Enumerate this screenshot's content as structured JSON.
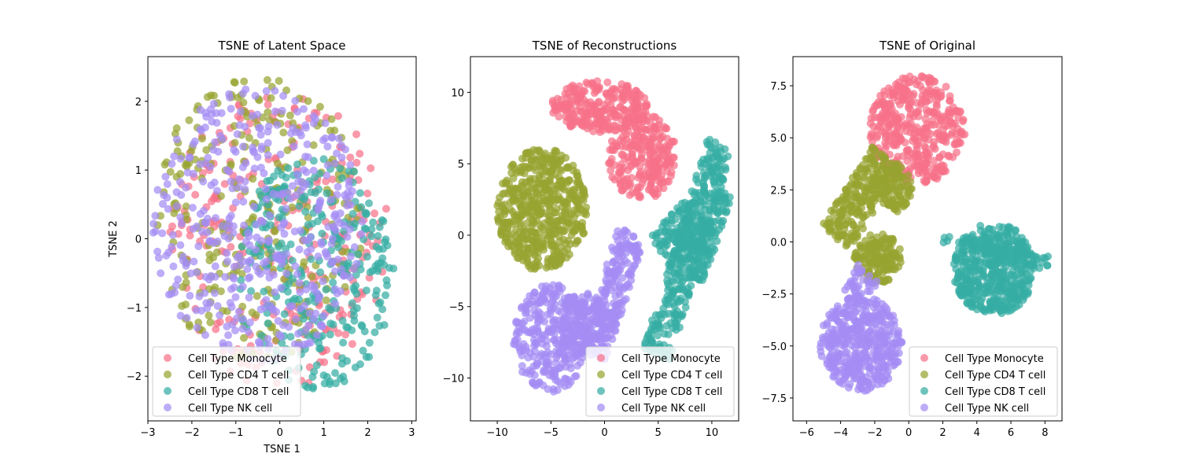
{
  "chart_data": [
    {
      "type": "scatter",
      "title": "TSNE of Latent Space",
      "xlabel": "TSNE 1",
      "ylabel": "TSNE 2",
      "xlim": [
        -3.0,
        3.1
      ],
      "ylim": [
        -2.65,
        2.65
      ],
      "xticks": [
        -3,
        -2,
        -1,
        0,
        1,
        2,
        3
      ],
      "yticks": [
        -2,
        -1,
        0,
        1,
        2
      ],
      "legend": "lower-left",
      "series": [
        {
          "name": "Cell Type Monocyte",
          "color": "#f77189",
          "clusters": [
            {
              "cx": 0.0,
              "cy": 0.0,
              "rx": 2.5,
              "ry": 2.2,
              "shape": "disk",
              "n": 260
            }
          ]
        },
        {
          "name": "Cell Type CD4 T cell",
          "color": "#97a431",
          "clusters": [
            {
              "cx": -0.5,
              "cy": 0.3,
              "rx": 2.4,
              "ry": 2.1,
              "shape": "disk",
              "n": 280
            }
          ]
        },
        {
          "name": "Cell Type CD8 T cell",
          "color": "#36ada4",
          "clusters": [
            {
              "cx": 0.8,
              "cy": -0.5,
              "rx": 1.8,
              "ry": 1.7,
              "shape": "disk",
              "n": 300
            }
          ]
        },
        {
          "name": "Cell Type NK cell",
          "color": "#a48cf4",
          "clusters": [
            {
              "cx": -0.5,
              "cy": 0.2,
              "rx": 2.4,
              "ry": 2.0,
              "shape": "disk",
              "n": 420
            }
          ]
        }
      ]
    },
    {
      "type": "scatter",
      "title": "TSNE of Reconstructions",
      "xlabel": "",
      "ylabel": "",
      "xlim": [
        -12.5,
        12.5
      ],
      "ylim": [
        -13.0,
        12.5
      ],
      "xticks": [
        -10,
        -5,
        0,
        5,
        10
      ],
      "yticks": [
        -10,
        -5,
        0,
        5,
        10
      ],
      "legend": "lower-right",
      "series": [
        {
          "name": "Cell Type Monocyte",
          "color": "#f77189",
          "clusters": [
            {
              "cx": -0.5,
              "cy": 9.0,
              "rx": 4.5,
              "ry": 1.8,
              "shape": "disk",
              "n": 260
            },
            {
              "cx": 3.5,
              "cy": 5.5,
              "rx": 3.2,
              "ry": 3.0,
              "shape": "disk",
              "n": 260
            }
          ]
        },
        {
          "name": "Cell Type CD4 T cell",
          "color": "#97a431",
          "clusters": [
            {
              "cx": -5.8,
              "cy": 1.8,
              "rx": 4.2,
              "ry": 4.3,
              "shape": "disk",
              "n": 520
            }
          ]
        },
        {
          "name": "Cell Type CD8 T cell",
          "color": "#36ada4",
          "clusters": [
            {
              "x0": 4.8,
              "y0": -8.5,
              "x1": 10.8,
              "y1": 6.5,
              "w": 1.3,
              "shape": "line",
              "n": 320
            },
            {
              "x0": 5.5,
              "y0": -1.5,
              "x1": 9.0,
              "y1": 1.5,
              "w": 1.8,
              "shape": "line",
              "n": 140
            },
            {
              "x0": 8.5,
              "y0": -3.0,
              "x1": 11.2,
              "y1": 3.0,
              "w": 0.8,
              "shape": "line",
              "n": 100
            }
          ]
        },
        {
          "name": "Cell Type NK cell",
          "color": "#a48cf4",
          "clusters": [
            {
              "cx": -5.0,
              "cy": -7.2,
              "rx": 3.5,
              "ry": 3.8,
              "shape": "disk",
              "n": 300
            },
            {
              "x0": -1.0,
              "y0": -8.5,
              "x1": 2.5,
              "y1": 0.2,
              "w": 1.3,
              "shape": "line",
              "n": 220
            },
            {
              "cx": -2.0,
              "cy": -6.0,
              "rx": 2.2,
              "ry": 2.0,
              "shape": "disk",
              "n": 120
            }
          ]
        }
      ]
    },
    {
      "type": "scatter",
      "title": "TSNE of Original",
      "xlabel": "",
      "ylabel": "",
      "xlim": [
        -6.8,
        9.0
      ],
      "ylim": [
        -8.6,
        8.9
      ],
      "xticks": [
        -6,
        -4,
        -2,
        0,
        2,
        4,
        6,
        8
      ],
      "yticks": [
        -7.5,
        -5.0,
        -2.5,
        0.0,
        2.5,
        5.0,
        7.5
      ],
      "legend": "lower-right",
      "series": [
        {
          "name": "Cell Type Monocyte",
          "color": "#f77189",
          "clusters": [
            {
              "cx": 0.5,
              "cy": 5.4,
              "rx": 2.8,
              "ry": 2.6,
              "shape": "disk",
              "n": 420
            }
          ]
        },
        {
          "name": "Cell Type CD4 T cell",
          "color": "#97a431",
          "clusters": [
            {
              "x0": -4.3,
              "y0": 0.2,
              "x1": -1.3,
              "y1": 4.0,
              "w": 1.0,
              "shape": "line",
              "n": 220
            },
            {
              "cx": -1.8,
              "cy": -0.8,
              "rx": 1.4,
              "ry": 1.2,
              "shape": "disk",
              "n": 160
            },
            {
              "cx": -1.0,
              "cy": 2.6,
              "rx": 1.2,
              "ry": 1.2,
              "shape": "disk",
              "n": 110
            }
          ]
        },
        {
          "name": "Cell Type CD8 T cell",
          "color": "#36ada4",
          "clusters": [
            {
              "cx": 5.0,
              "cy": -1.3,
              "rx": 2.4,
              "ry": 2.2,
              "shape": "disk",
              "n": 460
            },
            {
              "x0": 2.0,
              "y0": 0.0,
              "x1": 8.2,
              "y1": -1.0,
              "w": 0.4,
              "shape": "line",
              "n": 60
            }
          ]
        },
        {
          "name": "Cell Type NK cell",
          "color": "#a48cf4",
          "clusters": [
            {
              "cx": -2.8,
              "cy": -4.9,
              "rx": 2.4,
              "ry": 2.3,
              "shape": "disk",
              "n": 420
            },
            {
              "x0": -3.3,
              "y0": -2.8,
              "x1": -2.4,
              "y1": -1.5,
              "w": 0.7,
              "shape": "line",
              "n": 40
            }
          ]
        }
      ]
    }
  ]
}
